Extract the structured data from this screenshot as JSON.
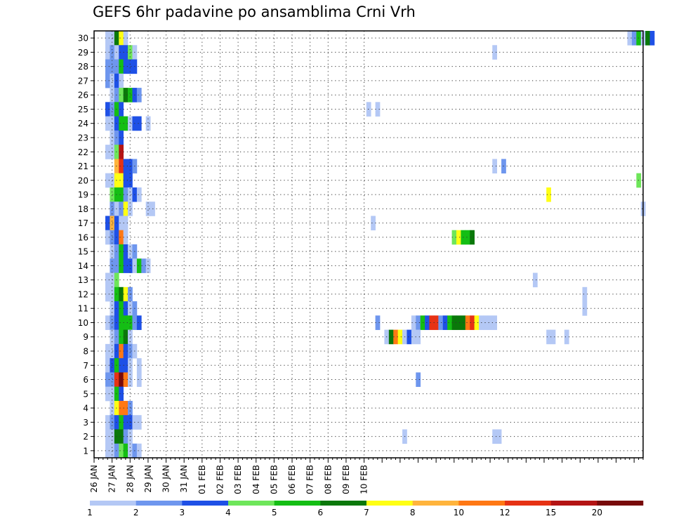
{
  "chart_data": {
    "type": "heatmap",
    "title": "GEFS 6hr padavine po ansamblima Crni Vrh",
    "x_tick_labels": [
      "26 JAN",
      "27 JAN",
      "28 JAN",
      "29 JAN",
      "30 JAN",
      "31 JAN",
      "01 FEB",
      "02 FEB",
      "03 FEB",
      "04 FEB",
      "05 FEB",
      "06 FEB",
      "07 FEB",
      "08 FEB",
      "09 FEB",
      "10 FEB"
    ],
    "y_tick_labels": [
      "1",
      "2",
      "3",
      "4",
      "5",
      "6",
      "7",
      "8",
      "9",
      "10",
      "11",
      "12",
      "13",
      "14",
      "15",
      "16",
      "17",
      "18",
      "19",
      "20",
      "21",
      "22",
      "23",
      "24",
      "25",
      "26",
      "27",
      "28",
      "29",
      "30"
    ],
    "grid": true,
    "legend_position": "bottom",
    "colorbar": {
      "labels": [
        "1",
        "2",
        "3",
        "4",
        "5",
        "6",
        "7",
        "8",
        "10",
        "12",
        "15",
        "20"
      ],
      "colors": [
        "#b4c8f5",
        "#6e96ee",
        "#1e50e6",
        "#6ee65a",
        "#14be14",
        "#0a780a",
        "#ffff14",
        "#ffb43c",
        "#ff7814",
        "#e63214",
        "#b41414",
        "#780a0a"
      ]
    },
    "cells": [
      {
        "m": 30,
        "t": [
          3,
          4,
          5,
          6,
          7
        ],
        "c": [
          1,
          1,
          6,
          7,
          1
        ]
      },
      {
        "m": 30,
        "t": [
          119,
          120,
          121,
          122,
          123,
          124
        ],
        "c": [
          1,
          2,
          5,
          1,
          6,
          3
        ]
      },
      {
        "m": 29,
        "t": [
          3,
          4,
          5,
          6,
          7,
          8,
          9
        ],
        "c": [
          1,
          2,
          1,
          3,
          3,
          4,
          1
        ]
      },
      {
        "m": 29,
        "t": [
          89
        ],
        "c": [
          1
        ]
      },
      {
        "m": 28,
        "t": [
          3,
          4,
          5,
          6,
          7,
          8,
          9
        ],
        "c": [
          2,
          2,
          2,
          5,
          3,
          3,
          3
        ]
      },
      {
        "m": 27,
        "t": [
          3,
          4,
          5,
          6
        ],
        "c": [
          2,
          1,
          3,
          1
        ]
      },
      {
        "m": 26,
        "t": [
          4,
          5,
          6,
          7,
          8,
          9,
          10
        ],
        "c": [
          1,
          2,
          4,
          6,
          5,
          3,
          2
        ]
      },
      {
        "m": 25,
        "t": [
          3,
          4,
          5,
          6
        ],
        "c": [
          3,
          2,
          5,
          3
        ]
      },
      {
        "m": 25,
        "t": [
          61,
          63
        ],
        "c": [
          1,
          1
        ]
      },
      {
        "m": 24,
        "t": [
          3,
          4,
          5,
          6,
          7,
          8,
          9,
          10,
          12
        ],
        "c": [
          1,
          1,
          3,
          5,
          5,
          1,
          3,
          3,
          1
        ]
      },
      {
        "m": 23,
        "t": [
          4,
          5,
          6
        ],
        "c": [
          1,
          2,
          3
        ]
      },
      {
        "m": 22,
        "t": [
          3,
          4,
          5,
          6
        ],
        "c": [
          1,
          1,
          4,
          11
        ]
      },
      {
        "m": 21,
        "t": [
          5,
          6,
          7,
          8,
          9
        ],
        "c": [
          8,
          10,
          3,
          3,
          2
        ]
      },
      {
        "m": 21,
        "t": [
          89,
          91
        ],
        "c": [
          1,
          2
        ]
      },
      {
        "m": 20,
        "t": [
          3,
          4,
          5,
          6,
          7,
          8
        ],
        "c": [
          1,
          1,
          7,
          7,
          3,
          3
        ]
      },
      {
        "m": 20,
        "t": [
          121
        ],
        "c": [
          4
        ]
      },
      {
        "m": 19,
        "t": [
          4,
          5,
          6,
          7,
          8,
          9,
          10
        ],
        "c": [
          4,
          5,
          5,
          2,
          1,
          3,
          1
        ]
      },
      {
        "m": 19,
        "t": [
          101
        ],
        "c": [
          7
        ]
      },
      {
        "m": 18,
        "t": [
          4,
          5,
          6,
          7,
          8
        ],
        "c": [
          2,
          1,
          2,
          7,
          1
        ]
      },
      {
        "m": 18,
        "t": [
          12,
          13
        ],
        "c": [
          1,
          1
        ]
      },
      {
        "m": 18,
        "t": [
          122
        ],
        "c": [
          1
        ]
      },
      {
        "m": 17,
        "t": [
          3,
          4,
          5,
          6,
          7
        ],
        "c": [
          3,
          8,
          3,
          1,
          1
        ]
      },
      {
        "m": 17,
        "t": [
          62
        ],
        "c": [
          1
        ]
      },
      {
        "m": 16,
        "t": [
          3,
          4,
          5,
          6,
          7
        ],
        "c": [
          1,
          2,
          3,
          9,
          1
        ]
      },
      {
        "m": 16,
        "t": [
          80,
          81,
          82,
          83,
          84
        ],
        "c": [
          4,
          7,
          5,
          5,
          6
        ]
      },
      {
        "m": 15,
        "t": [
          4,
          5,
          6,
          7,
          8,
          9
        ],
        "c": [
          1,
          2,
          5,
          3,
          1,
          2
        ]
      },
      {
        "m": 14,
        "t": [
          4,
          5,
          6,
          7,
          8,
          9,
          10,
          11,
          12
        ],
        "c": [
          2,
          2,
          5,
          3,
          3,
          1,
          5,
          2,
          1
        ]
      },
      {
        "m": 13,
        "t": [
          3,
          4,
          5
        ],
        "c": [
          1,
          1,
          4
        ]
      },
      {
        "m": 13,
        "t": [
          98
        ],
        "c": [
          1
        ]
      },
      {
        "m": 12,
        "t": [
          3,
          4,
          5,
          6,
          7,
          8
        ],
        "c": [
          1,
          1,
          5,
          6,
          7,
          2
        ]
      },
      {
        "m": 12,
        "t": [
          109
        ],
        "c": [
          1
        ]
      },
      {
        "m": 11,
        "t": [
          4,
          5,
          6,
          7,
          8,
          9
        ],
        "c": [
          1,
          3,
          5,
          3,
          1,
          2
        ]
      },
      {
        "m": 11,
        "t": [
          109
        ],
        "c": [
          1
        ]
      },
      {
        "m": 10,
        "t": [
          3,
          4,
          5,
          6,
          7,
          8,
          9,
          10
        ],
        "c": [
          1,
          2,
          3,
          5,
          5,
          5,
          2,
          3
        ]
      },
      {
        "m": 10,
        "t": [
          63
        ],
        "c": [
          2
        ]
      },
      {
        "m": 10,
        "t": [
          71,
          72,
          73,
          74,
          75,
          76,
          77,
          78,
          79,
          80,
          81,
          82,
          83,
          84,
          85,
          86,
          87,
          88,
          89
        ],
        "c": [
          1,
          2,
          5,
          3,
          10,
          10,
          2,
          3,
          5,
          6,
          6,
          6,
          9,
          10,
          7,
          1,
          1,
          1,
          1
        ]
      },
      {
        "m": 9,
        "t": [
          4,
          5,
          6,
          7,
          8
        ],
        "c": [
          1,
          2,
          5,
          6,
          1
        ]
      },
      {
        "m": 9,
        "t": [
          65,
          66,
          67,
          68,
          69,
          70,
          71,
          72
        ],
        "c": [
          1,
          6,
          9,
          7,
          1,
          3,
          1,
          1
        ]
      },
      {
        "m": 9,
        "t": [
          101,
          102,
          105
        ],
        "c": [
          1,
          1,
          1
        ]
      },
      {
        "m": 8,
        "t": [
          3,
          4,
          5,
          6,
          7,
          8
        ],
        "c": [
          1,
          1,
          3,
          9,
          3,
          2
        ]
      },
      {
        "m": 8,
        "t": [
          9
        ],
        "c": [
          1
        ]
      },
      {
        "m": 7,
        "t": [
          3,
          4,
          5,
          6,
          7,
          8
        ],
        "c": [
          1,
          3,
          5,
          3,
          3,
          1
        ]
      },
      {
        "m": 7,
        "t": [
          10
        ],
        "c": [
          1
        ]
      },
      {
        "m": 6,
        "t": [
          3,
          4,
          5,
          6,
          7,
          8
        ],
        "c": [
          2,
          2,
          10,
          12,
          9,
          1
        ]
      },
      {
        "m": 6,
        "t": [
          10
        ],
        "c": [
          1
        ]
      },
      {
        "m": 6,
        "t": [
          72
        ],
        "c": [
          2
        ]
      },
      {
        "m": 5,
        "t": [
          3,
          4,
          5,
          6
        ],
        "c": [
          1,
          1,
          5,
          3
        ]
      },
      {
        "m": 4,
        "t": [
          4,
          5,
          6,
          7,
          8
        ],
        "c": [
          1,
          7,
          9,
          9,
          2
        ]
      },
      {
        "m": 3,
        "t": [
          3,
          4,
          5,
          6,
          7,
          8,
          9,
          10
        ],
        "c": [
          1,
          2,
          3,
          5,
          3,
          3,
          1,
          1
        ]
      },
      {
        "m": 2,
        "t": [
          3,
          4,
          5,
          6,
          7,
          8
        ],
        "c": [
          1,
          1,
          6,
          6,
          2,
          1
        ]
      },
      {
        "m": 2,
        "t": [
          69
        ],
        "c": [
          1
        ]
      },
      {
        "m": 2,
        "t": [
          89,
          90
        ],
        "c": [
          1,
          1
        ]
      },
      {
        "m": 1,
        "t": [
          3,
          4,
          5,
          6,
          7,
          8,
          9,
          10
        ],
        "c": [
          1,
          1,
          2,
          4,
          5,
          1,
          2,
          1
        ]
      }
    ]
  }
}
